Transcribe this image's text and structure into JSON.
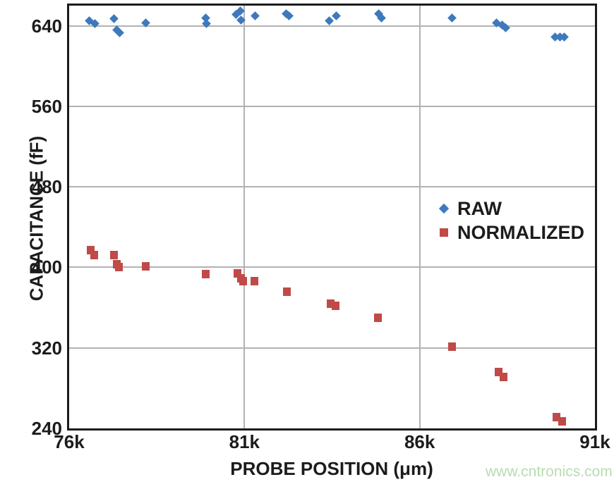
{
  "page": {
    "background": "#ffffff",
    "watermark": "www.cntronics.com",
    "watermark_color": "#b7ddb0"
  },
  "chart_data": {
    "type": "scatter",
    "title": "",
    "xlabel": "PROBE POSITION (μm)",
    "ylabel": "CAPACITANCE (fF)",
    "xlim": [
      76000,
      91000
    ],
    "ylim": [
      240,
      660
    ],
    "grid": true,
    "grid_color": "#b2b2b2",
    "frame_color": "#1c1c1c",
    "legend_position": "inside-right",
    "x_ticks": [
      {
        "value": 76000,
        "label": "76k"
      },
      {
        "value": 81000,
        "label": "81k"
      },
      {
        "value": 86000,
        "label": "86k"
      },
      {
        "value": 91000,
        "label": "91k"
      }
    ],
    "y_ticks": [
      {
        "value": 240,
        "label": "240"
      },
      {
        "value": 320,
        "label": "320"
      },
      {
        "value": 400,
        "label": "400"
      },
      {
        "value": 480,
        "label": "480"
      },
      {
        "value": 560,
        "label": "560"
      },
      {
        "value": 640,
        "label": "640"
      }
    ],
    "series": [
      {
        "name": "RAW",
        "marker": "diamond",
        "color": "#3E79BD",
        "points": [
          [
            76570,
            645
          ],
          [
            76730,
            642
          ],
          [
            77280,
            647
          ],
          [
            77360,
            636
          ],
          [
            77440,
            633
          ],
          [
            78190,
            643
          ],
          [
            79890,
            648
          ],
          [
            79910,
            642
          ],
          [
            80760,
            651
          ],
          [
            80880,
            655
          ],
          [
            80900,
            646
          ],
          [
            81300,
            650
          ],
          [
            82190,
            652
          ],
          [
            82280,
            650
          ],
          [
            83410,
            645
          ],
          [
            83630,
            650
          ],
          [
            84830,
            652
          ],
          [
            84910,
            648
          ],
          [
            86930,
            648
          ],
          [
            88190,
            643
          ],
          [
            88350,
            641
          ],
          [
            88450,
            638
          ],
          [
            89870,
            629
          ],
          [
            90010,
            629
          ],
          [
            90130,
            629
          ]
        ]
      },
      {
        "name": "NORMALIZED",
        "marker": "square",
        "color": "#C04A47",
        "points": [
          [
            76610,
            417
          ],
          [
            76710,
            412
          ],
          [
            77280,
            412
          ],
          [
            77360,
            403
          ],
          [
            77420,
            400
          ],
          [
            78190,
            401
          ],
          [
            79890,
            393
          ],
          [
            80800,
            394
          ],
          [
            80900,
            389
          ],
          [
            80960,
            386
          ],
          [
            81280,
            386
          ],
          [
            82210,
            376
          ],
          [
            83450,
            364
          ],
          [
            83610,
            362
          ],
          [
            84810,
            350
          ],
          [
            86930,
            321
          ],
          [
            88250,
            296
          ],
          [
            88400,
            291
          ],
          [
            89900,
            251
          ],
          [
            90060,
            247
          ]
        ]
      }
    ]
  }
}
